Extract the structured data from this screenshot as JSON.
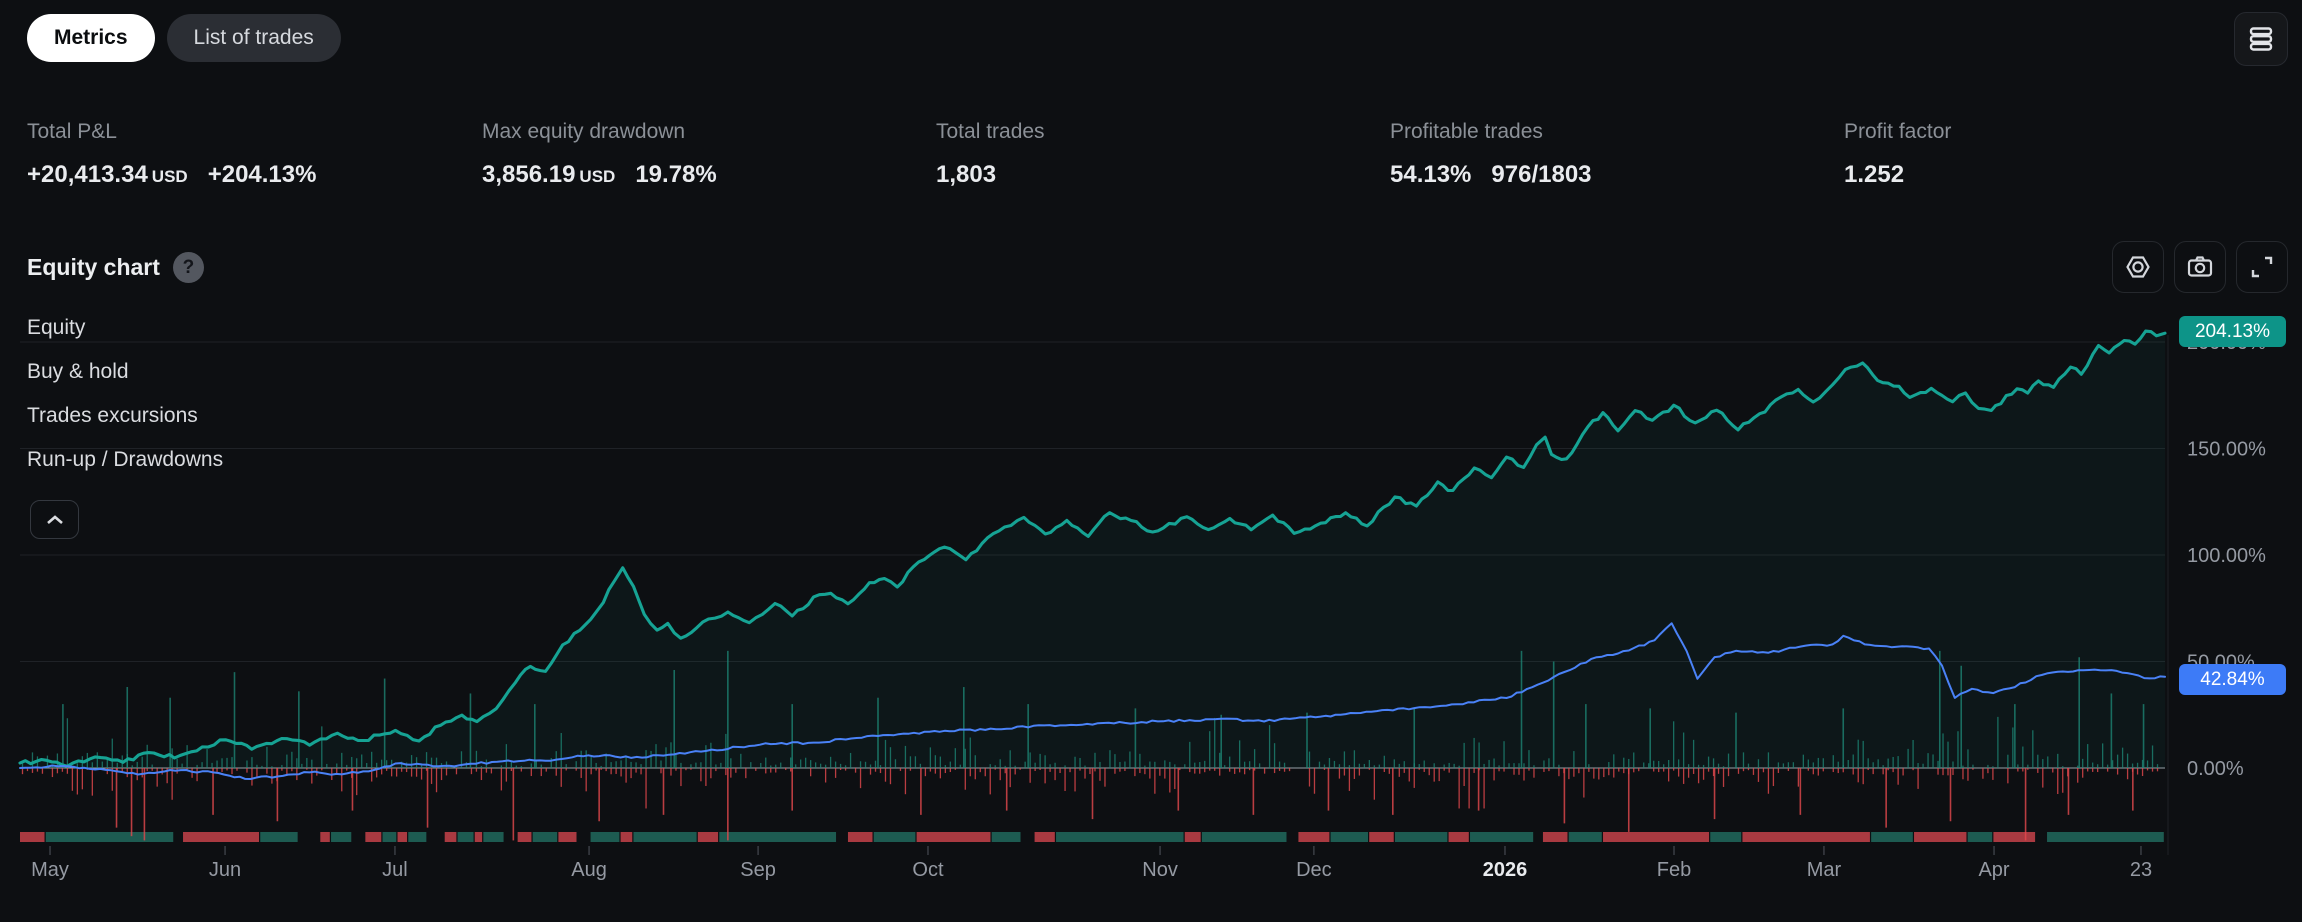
{
  "tabs": {
    "metrics": "Metrics",
    "list_of_trades": "List of trades"
  },
  "stats": [
    {
      "label": "Total P&L",
      "amount": "+20,413.34",
      "currency": "USD",
      "percent": "+204.13%"
    },
    {
      "label": "Max equity drawdown",
      "amount": "3,856.19",
      "currency": "USD",
      "percent": "19.78%"
    },
    {
      "label": "Total trades",
      "value": "1,803"
    },
    {
      "label": "Profitable trades",
      "percent": "54.13%",
      "ratio": "976/1803"
    },
    {
      "label": "Profit factor",
      "value": "1.252"
    }
  ],
  "section": {
    "title": "Equity chart",
    "help": "?"
  },
  "legend": {
    "items": [
      "Equity",
      "Buy & hold",
      "Trades excursions",
      "Run-up / Drawdowns"
    ]
  },
  "badges": {
    "equity": "204.13%",
    "buyhold": "42.84%"
  },
  "chart_data": {
    "type": "line",
    "title": "Equity chart",
    "grid": true,
    "legend_position": "top-left-overlay",
    "colors": {
      "equity": "#16a394",
      "equity_fill": "rgba(22,163,148,0.055)",
      "buyhold": "#4a82f7",
      "up_bar": "rgba(31,138,120,0.75)",
      "down_bar": "rgba(229,72,77,0.8)",
      "grid": "#1f2227",
      "zero_line": "#9aa0a8",
      "axis_text": "#959aa3",
      "axis_text_bold": "#e9ebee",
      "badge_equity": "#0d9488",
      "badge_buyhold": "#3d7bf7"
    },
    "y_axis": {
      "values": [
        0,
        50,
        100,
        150,
        200
      ],
      "tick_labels": [
        "0.00%",
        "50.00%",
        "100.00%",
        "150.00%",
        "200.00%"
      ],
      "range": [
        -38,
        215
      ]
    },
    "x_axis": {
      "labels": [
        {
          "label": "May",
          "f": 0.014
        },
        {
          "label": "Jun",
          "f": 0.0956
        },
        {
          "label": "Jul",
          "f": 0.1748
        },
        {
          "label": "Aug",
          "f": 0.2653
        },
        {
          "label": "Sep",
          "f": 0.3441
        },
        {
          "label": "Oct",
          "f": 0.4233
        },
        {
          "label": "Nov",
          "f": 0.5315
        },
        {
          "label": "Dec",
          "f": 0.6032
        },
        {
          "label": "2026",
          "f": 0.6923,
          "bold": true
        },
        {
          "label": "Feb",
          "f": 0.7711
        },
        {
          "label": "Mar",
          "f": 0.841
        },
        {
          "label": "Apr",
          "f": 0.9203
        },
        {
          "label": "23",
          "f": 0.9888
        }
      ]
    },
    "series": [
      {
        "name": "Equity",
        "final": 204.13,
        "anchors": [
          [
            0.0,
            2
          ],
          [
            0.01,
            4
          ],
          [
            0.022,
            1
          ],
          [
            0.035,
            5
          ],
          [
            0.048,
            3
          ],
          [
            0.06,
            7
          ],
          [
            0.072,
            5
          ],
          [
            0.085,
            10
          ],
          [
            0.096,
            13
          ],
          [
            0.108,
            9
          ],
          [
            0.122,
            14
          ],
          [
            0.135,
            11
          ],
          [
            0.148,
            16
          ],
          [
            0.16,
            13
          ],
          [
            0.175,
            18
          ],
          [
            0.186,
            13
          ],
          [
            0.196,
            20
          ],
          [
            0.206,
            25
          ],
          [
            0.213,
            22
          ],
          [
            0.222,
            28
          ],
          [
            0.231,
            40
          ],
          [
            0.238,
            48
          ],
          [
            0.245,
            45
          ],
          [
            0.253,
            58
          ],
          [
            0.261,
            65
          ],
          [
            0.266,
            70
          ],
          [
            0.272,
            78
          ],
          [
            0.277,
            88
          ],
          [
            0.281,
            94
          ],
          [
            0.286,
            85
          ],
          [
            0.291,
            72
          ],
          [
            0.297,
            65
          ],
          [
            0.302,
            68
          ],
          [
            0.308,
            61
          ],
          [
            0.313,
            64
          ],
          [
            0.321,
            70
          ],
          [
            0.33,
            73
          ],
          [
            0.34,
            68
          ],
          [
            0.346,
            72
          ],
          [
            0.352,
            77
          ],
          [
            0.36,
            71
          ],
          [
            0.37,
            80
          ],
          [
            0.378,
            82
          ],
          [
            0.386,
            77
          ],
          [
            0.396,
            87
          ],
          [
            0.403,
            89
          ],
          [
            0.409,
            85
          ],
          [
            0.419,
            97
          ],
          [
            0.424,
            100
          ],
          [
            0.431,
            104
          ],
          [
            0.441,
            98
          ],
          [
            0.451,
            108
          ],
          [
            0.459,
            113
          ],
          [
            0.468,
            118
          ],
          [
            0.478,
            110
          ],
          [
            0.488,
            116
          ],
          [
            0.498,
            109
          ],
          [
            0.508,
            120
          ],
          [
            0.518,
            116
          ],
          [
            0.528,
            111
          ],
          [
            0.533,
            113
          ],
          [
            0.544,
            118
          ],
          [
            0.554,
            112
          ],
          [
            0.564,
            117
          ],
          [
            0.574,
            112
          ],
          [
            0.584,
            119
          ],
          [
            0.594,
            110
          ],
          [
            0.604,
            114
          ],
          [
            0.618,
            120
          ],
          [
            0.628,
            114
          ],
          [
            0.641,
            127
          ],
          [
            0.651,
            123
          ],
          [
            0.661,
            134
          ],
          [
            0.668,
            130
          ],
          [
            0.678,
            141
          ],
          [
            0.686,
            136
          ],
          [
            0.693,
            146
          ],
          [
            0.701,
            141
          ],
          [
            0.707,
            152
          ],
          [
            0.711,
            155
          ],
          [
            0.714,
            147
          ],
          [
            0.721,
            145
          ],
          [
            0.731,
            160
          ],
          [
            0.738,
            167
          ],
          [
            0.745,
            158
          ],
          [
            0.753,
            168
          ],
          [
            0.761,
            163
          ],
          [
            0.771,
            170
          ],
          [
            0.781,
            162
          ],
          [
            0.791,
            168
          ],
          [
            0.801,
            159
          ],
          [
            0.811,
            166
          ],
          [
            0.821,
            174
          ],
          [
            0.829,
            178
          ],
          [
            0.836,
            172
          ],
          [
            0.842,
            177
          ],
          [
            0.851,
            187
          ],
          [
            0.859,
            190
          ],
          [
            0.866,
            182
          ],
          [
            0.876,
            179
          ],
          [
            0.881,
            174
          ],
          [
            0.891,
            178
          ],
          [
            0.901,
            172
          ],
          [
            0.907,
            176
          ],
          [
            0.913,
            169
          ],
          [
            0.919,
            168
          ],
          [
            0.921,
            170
          ],
          [
            0.931,
            178
          ],
          [
            0.936,
            176
          ],
          [
            0.941,
            182
          ],
          [
            0.948,
            179
          ],
          [
            0.956,
            188
          ],
          [
            0.961,
            185
          ],
          [
            0.969,
            198
          ],
          [
            0.974,
            195
          ],
          [
            0.981,
            201
          ],
          [
            0.986,
            199
          ],
          [
            0.991,
            205
          ],
          [
            0.996,
            203
          ],
          [
            1.0,
            204.13
          ]
        ]
      },
      {
        "name": "Buy & hold",
        "final": 42.84,
        "anchors": [
          [
            0.0,
            0
          ],
          [
            0.02,
            1
          ],
          [
            0.04,
            -1
          ],
          [
            0.055,
            -3
          ],
          [
            0.07,
            -1
          ],
          [
            0.09,
            -2
          ],
          [
            0.105,
            -5
          ],
          [
            0.12,
            -4
          ],
          [
            0.135,
            -2
          ],
          [
            0.15,
            -3
          ],
          [
            0.165,
            -1
          ],
          [
            0.175,
            2
          ],
          [
            0.2,
            1
          ],
          [
            0.225,
            3
          ],
          [
            0.25,
            4
          ],
          [
            0.265,
            6
          ],
          [
            0.29,
            5
          ],
          [
            0.32,
            8
          ],
          [
            0.345,
            11
          ],
          [
            0.37,
            12
          ],
          [
            0.4,
            15
          ],
          [
            0.424,
            17
          ],
          [
            0.45,
            18
          ],
          [
            0.48,
            20
          ],
          [
            0.51,
            21
          ],
          [
            0.533,
            22
          ],
          [
            0.56,
            23
          ],
          [
            0.58,
            22
          ],
          [
            0.604,
            24
          ],
          [
            0.625,
            26
          ],
          [
            0.65,
            28
          ],
          [
            0.67,
            30
          ],
          [
            0.693,
            33
          ],
          [
            0.705,
            38
          ],
          [
            0.72,
            45
          ],
          [
            0.735,
            52
          ],
          [
            0.75,
            55
          ],
          [
            0.762,
            60
          ],
          [
            0.77,
            68
          ],
          [
            0.777,
            55
          ],
          [
            0.782,
            42
          ],
          [
            0.79,
            52
          ],
          [
            0.8,
            55
          ],
          [
            0.815,
            54
          ],
          [
            0.83,
            57
          ],
          [
            0.845,
            58
          ],
          [
            0.85,
            62
          ],
          [
            0.86,
            58
          ],
          [
            0.875,
            57
          ],
          [
            0.89,
            56
          ],
          [
            0.896,
            48
          ],
          [
            0.902,
            33
          ],
          [
            0.91,
            37
          ],
          [
            0.92,
            35
          ],
          [
            0.93,
            38
          ],
          [
            0.94,
            43
          ],
          [
            0.95,
            45
          ],
          [
            0.962,
            46
          ],
          [
            0.975,
            46
          ],
          [
            0.985,
            44
          ],
          [
            0.993,
            42
          ],
          [
            1.0,
            42.84
          ]
        ]
      }
    ],
    "excursions": {
      "seed": 42,
      "count": 430,
      "up_scale": 4.2,
      "down_scale": 3.6,
      "spikes_up": [
        [
          0.02,
          30
        ],
        [
          0.05,
          38
        ],
        [
          0.07,
          33
        ],
        [
          0.1,
          45
        ],
        [
          0.13,
          36
        ],
        [
          0.17,
          42
        ],
        [
          0.21,
          35
        ],
        [
          0.24,
          30
        ],
        [
          0.305,
          46
        ],
        [
          0.33,
          55
        ],
        [
          0.36,
          30
        ],
        [
          0.4,
          33
        ],
        [
          0.44,
          38
        ],
        [
          0.47,
          30
        ],
        [
          0.52,
          28
        ],
        [
          0.56,
          25
        ],
        [
          0.6,
          26
        ],
        [
          0.65,
          28
        ],
        [
          0.7,
          55
        ],
        [
          0.715,
          50
        ],
        [
          0.73,
          30
        ],
        [
          0.76,
          28
        ],
        [
          0.8,
          26
        ],
        [
          0.85,
          28
        ],
        [
          0.895,
          55
        ],
        [
          0.905,
          48
        ],
        [
          0.93,
          30
        ],
        [
          0.96,
          52
        ],
        [
          0.975,
          35
        ],
        [
          0.99,
          30
        ]
      ],
      "spikes_down": [
        [
          0.045,
          -28
        ],
        [
          0.052,
          -32
        ],
        [
          0.058,
          -34
        ],
        [
          0.09,
          -22
        ],
        [
          0.12,
          -25
        ],
        [
          0.155,
          -20
        ],
        [
          0.19,
          -28
        ],
        [
          0.23,
          -34
        ],
        [
          0.27,
          -25
        ],
        [
          0.3,
          -22
        ],
        [
          0.33,
          -34
        ],
        [
          0.36,
          -20
        ],
        [
          0.42,
          -22
        ],
        [
          0.46,
          -20
        ],
        [
          0.5,
          -24
        ],
        [
          0.54,
          -20
        ],
        [
          0.575,
          -22
        ],
        [
          0.61,
          -20
        ],
        [
          0.64,
          -22
        ],
        [
          0.68,
          -20
        ],
        [
          0.72,
          -26
        ],
        [
          0.75,
          -30
        ],
        [
          0.79,
          -24
        ],
        [
          0.83,
          -22
        ],
        [
          0.87,
          -28
        ],
        [
          0.9,
          -25
        ],
        [
          0.935,
          -34
        ],
        [
          0.955,
          -22
        ],
        [
          0.985,
          -20
        ]
      ]
    },
    "strip": {
      "colors": {
        "g": "#1d5b51",
        "r": "#a93a41"
      },
      "segments": [
        [
          0.012,
          "r"
        ],
        [
          0.06,
          "g"
        ],
        [
          0.004,
          "d"
        ],
        [
          0.036,
          "r"
        ],
        [
          0.018,
          "g"
        ],
        [
          0.01,
          "d"
        ],
        [
          0.005,
          "r"
        ],
        [
          0.01,
          "g"
        ],
        [
          0.006,
          "d"
        ],
        [
          0.008,
          "r"
        ],
        [
          0.007,
          "g"
        ],
        [
          0.005,
          "r"
        ],
        [
          0.009,
          "g"
        ],
        [
          0.008,
          "d"
        ],
        [
          0.006,
          "r"
        ],
        [
          0.008,
          "g"
        ],
        [
          0.004,
          "r"
        ],
        [
          0.01,
          "g"
        ],
        [
          0.006,
          "d"
        ],
        [
          0.007,
          "r"
        ],
        [
          0.012,
          "g"
        ],
        [
          0.009,
          "r"
        ],
        [
          0.006,
          "d"
        ],
        [
          0.014,
          "g"
        ],
        [
          0.006,
          "r"
        ],
        [
          0.03,
          "g"
        ],
        [
          0.01,
          "r"
        ],
        [
          0.055,
          "g"
        ],
        [
          0.005,
          "d"
        ],
        [
          0.012,
          "r"
        ],
        [
          0.02,
          "g"
        ],
        [
          0.035,
          "r"
        ],
        [
          0.014,
          "g"
        ],
        [
          0.006,
          "d"
        ],
        [
          0.01,
          "r"
        ],
        [
          0.06,
          "g"
        ],
        [
          0.008,
          "r"
        ],
        [
          0.04,
          "g"
        ],
        [
          0.005,
          "d"
        ],
        [
          0.015,
          "r"
        ],
        [
          0.018,
          "g"
        ],
        [
          0.012,
          "r"
        ],
        [
          0.025,
          "g"
        ],
        [
          0.01,
          "r"
        ],
        [
          0.03,
          "g"
        ],
        [
          0.004,
          "d"
        ],
        [
          0.012,
          "r"
        ],
        [
          0.016,
          "g"
        ],
        [
          0.05,
          "r"
        ],
        [
          0.015,
          "g"
        ],
        [
          0.06,
          "r"
        ],
        [
          0.02,
          "g"
        ],
        [
          0.025,
          "r"
        ],
        [
          0.012,
          "g"
        ],
        [
          0.02,
          "r"
        ],
        [
          0.005,
          "d"
        ],
        [
          0.055,
          "g"
        ]
      ]
    }
  }
}
